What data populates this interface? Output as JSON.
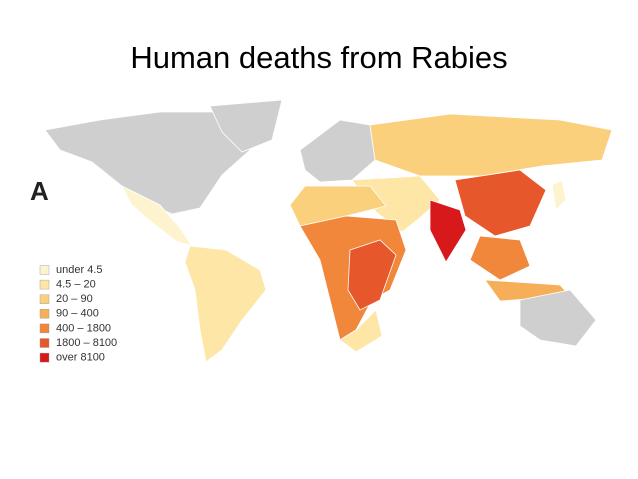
{
  "title": "Human deaths from Rabies",
  "panel_label": "A",
  "legend": [
    {
      "label": "under 4.5",
      "color": "#fdf4cf"
    },
    {
      "label": "4.5 – 20",
      "color": "#fde6a6"
    },
    {
      "label": "20 – 90",
      "color": "#fbd07c"
    },
    {
      "label": "90 – 400",
      "color": "#f7ae58"
    },
    {
      "label": "400 – 1800",
      "color": "#f0873b"
    },
    {
      "label": "1800 – 8100",
      "color": "#e6572b"
    },
    {
      "label": "over 8100",
      "color": "#d7191c"
    }
  ]
}
